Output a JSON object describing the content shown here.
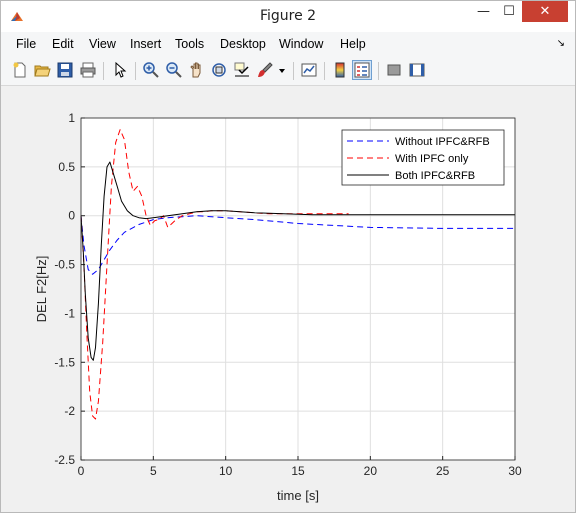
{
  "window": {
    "title": "Figure 2",
    "controls": {
      "minimize": "—",
      "maximize": "☐",
      "close": "✕"
    }
  },
  "menu": {
    "items": [
      "File",
      "Edit",
      "View",
      "Insert",
      "Tools",
      "Desktop",
      "Window",
      "Help"
    ]
  },
  "toolbar": {
    "buttons": [
      "new-figure-icon",
      "open-file-icon",
      "save-icon",
      "print-icon",
      "edit-plot-arrow-icon",
      "zoom-in-icon",
      "zoom-out-icon",
      "pan-hand-icon",
      "rotate-3d-icon",
      "data-cursor-icon",
      "brush-icon",
      "brush-dropdown-icon",
      "link-plot-icon",
      "colorbar-icon",
      "legend-icon",
      "hide-plot-tools-icon",
      "show-plot-tools-icon"
    ]
  },
  "chart_data": {
    "type": "line",
    "title": "",
    "xlabel": "time [s]",
    "ylabel": "DEL F2[Hz]",
    "xlim": [
      0,
      30
    ],
    "ylim": [
      -2.5,
      1
    ],
    "xticks": [
      0,
      5,
      10,
      15,
      20,
      25,
      30
    ],
    "yticks": [
      1,
      0.5,
      0,
      -0.5,
      -1,
      -1.5,
      -2,
      -2.5
    ],
    "xtick_labels": [
      "0",
      "5",
      "10",
      "15",
      "20",
      "25",
      "30"
    ],
    "ytick_labels": [
      "1",
      "0.5",
      "0",
      "-0.5",
      "-1",
      "-1.5",
      "-2",
      "-2.5"
    ],
    "grid": true,
    "legend_position": "top-right",
    "series": [
      {
        "name": "Without IPFC&RFB",
        "color": "#0000ff",
        "style": "dashed",
        "x": [
          0,
          0.2,
          0.5,
          0.8,
          1.2,
          1.6,
          2.0,
          2.5,
          3.0,
          4.0,
          5.0,
          6.0,
          7.0,
          8.0,
          10.0,
          12.0,
          15.0,
          20.0,
          25.0,
          30.0
        ],
        "y": [
          0,
          -0.3,
          -0.55,
          -0.6,
          -0.55,
          -0.45,
          -0.35,
          -0.25,
          -0.17,
          -0.09,
          -0.04,
          -0.02,
          -0.01,
          0,
          -0.02,
          -0.04,
          -0.08,
          -0.12,
          -0.13,
          -0.13
        ]
      },
      {
        "name": "With IPFC only",
        "color": "#ff0000",
        "style": "dashed",
        "x": [
          0,
          0.2,
          0.4,
          0.6,
          0.8,
          1.0,
          1.2,
          1.5,
          1.8,
          2.1,
          2.4,
          2.7,
          3.0,
          3.3,
          3.6,
          3.9,
          4.2,
          4.5,
          4.8,
          5.1,
          5.4,
          5.7,
          6.0,
          6.5,
          7.0,
          7.5,
          8.0,
          8.5,
          9.0,
          10.0,
          11.0,
          12.0,
          13.0,
          14.0,
          15.0,
          16.0,
          17.0,
          18.0,
          18.5
        ],
        "y": [
          0,
          -0.5,
          -1.2,
          -1.8,
          -2.05,
          -2.08,
          -1.9,
          -1.3,
          -0.5,
          0.3,
          0.75,
          0.88,
          0.78,
          0.45,
          0.25,
          0.3,
          0.2,
          0,
          -0.1,
          -0.05,
          -0.04,
          0,
          -0.12,
          -0.05,
          0,
          0.02,
          0.04,
          0.04,
          0.05,
          0.05,
          0.04,
          0.03,
          0.02,
          0.02,
          0.02,
          0.02,
          0.02,
          0.02,
          0.02
        ]
      },
      {
        "name": "Both IPFC&RFB",
        "color": "#000000",
        "style": "solid",
        "x": [
          0,
          0.15,
          0.3,
          0.5,
          0.7,
          0.85,
          1.0,
          1.2,
          1.4,
          1.6,
          1.8,
          2.0,
          2.2,
          2.5,
          2.8,
          3.2,
          3.6,
          4.0,
          4.5,
          5.0,
          6.0,
          7.0,
          8.0,
          9.0,
          10.0,
          11.0,
          12.0,
          14.0,
          16.0,
          20.0,
          25.0,
          30.0
        ],
        "y": [
          0,
          -0.35,
          -0.8,
          -1.25,
          -1.45,
          -1.48,
          -1.35,
          -0.9,
          -0.3,
          0.2,
          0.5,
          0.55,
          0.45,
          0.3,
          0.15,
          0.05,
          0,
          -0.02,
          -0.03,
          -0.02,
          0,
          0.02,
          0.04,
          0.05,
          0.05,
          0.04,
          0.03,
          0.02,
          0.01,
          0.01,
          0.01,
          0.01
        ]
      }
    ]
  }
}
